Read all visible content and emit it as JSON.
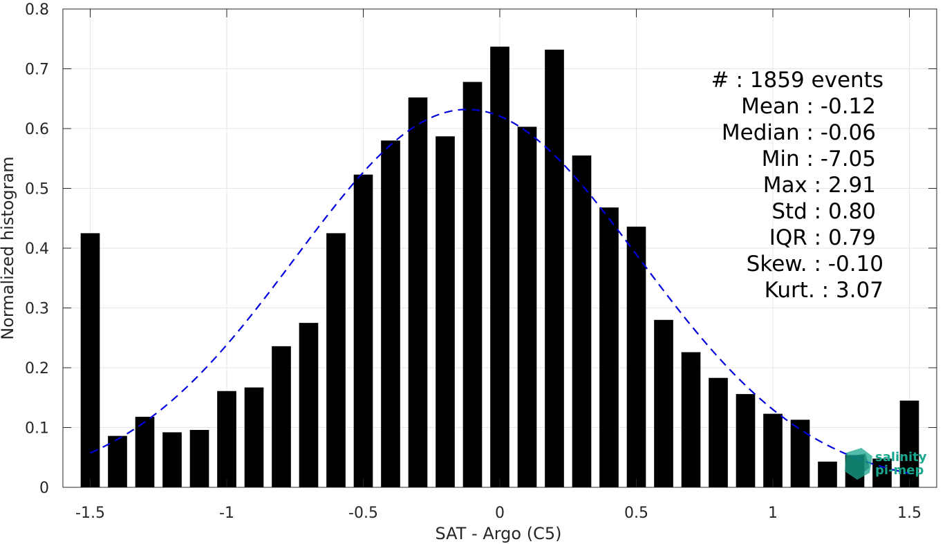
{
  "chart_data": {
    "type": "bar",
    "xlabel": "SAT - Argo (C5)",
    "ylabel": "Normalized histogram",
    "xlim": [
      -1.6,
      1.6
    ],
    "ylim": [
      0,
      0.8
    ],
    "xticks": [
      -1.5,
      -1,
      -0.5,
      0,
      0.5,
      1,
      1.5
    ],
    "xtick_labels": [
      "-1.5",
      "-1",
      "-0.5",
      "0",
      "0.5",
      "1",
      "1.5"
    ],
    "yticks": [
      0,
      0.1,
      0.2,
      0.3,
      0.4,
      0.5,
      0.6,
      0.7,
      0.8
    ],
    "ytick_labels": [
      "0",
      "0.1",
      "0.2",
      "0.3",
      "0.4",
      "0.5",
      "0.6",
      "0.7",
      "0.8"
    ],
    "grid": true,
    "bar_color": "#000000",
    "bar_width": 0.07,
    "bars": {
      "x": [
        -1.5,
        -1.4,
        -1.3,
        -1.2,
        -1.1,
        -1.0,
        -0.9,
        -0.8,
        -0.7,
        -0.6,
        -0.5,
        -0.4,
        -0.3,
        -0.2,
        -0.1,
        0.0,
        0.1,
        0.2,
        0.3,
        0.4,
        0.5,
        0.6,
        0.7,
        0.8,
        0.9,
        1.0,
        1.1,
        1.2,
        1.3,
        1.4,
        1.5
      ],
      "values": [
        0.425,
        0.086,
        0.118,
        0.092,
        0.096,
        0.161,
        0.167,
        0.236,
        0.275,
        0.425,
        0.523,
        0.58,
        0.652,
        0.587,
        0.678,
        0.737,
        0.603,
        0.732,
        0.555,
        0.468,
        0.436,
        0.28,
        0.226,
        0.183,
        0.156,
        0.123,
        0.113,
        0.043,
        0.054,
        0.048,
        0.145
      ]
    },
    "fit_curve": {
      "style": "dashed",
      "color": "#0000dd",
      "mean": -0.12,
      "std": 0.63,
      "peak": 0.632,
      "x_range": [
        -1.5,
        1.5
      ]
    },
    "stats_lines": [
      "#  : 1859 events",
      "Mean : -0.12",
      "Median : -0.06",
      "Min : -7.05",
      "Max : 2.91",
      "Std : 0.80",
      "IQR : 0.79",
      "Skew. : -0.10",
      "Kurt. : 3.07"
    ]
  },
  "logo": {
    "line1": "salinity",
    "line2": "pi-mep",
    "color": "#1aa58f"
  }
}
